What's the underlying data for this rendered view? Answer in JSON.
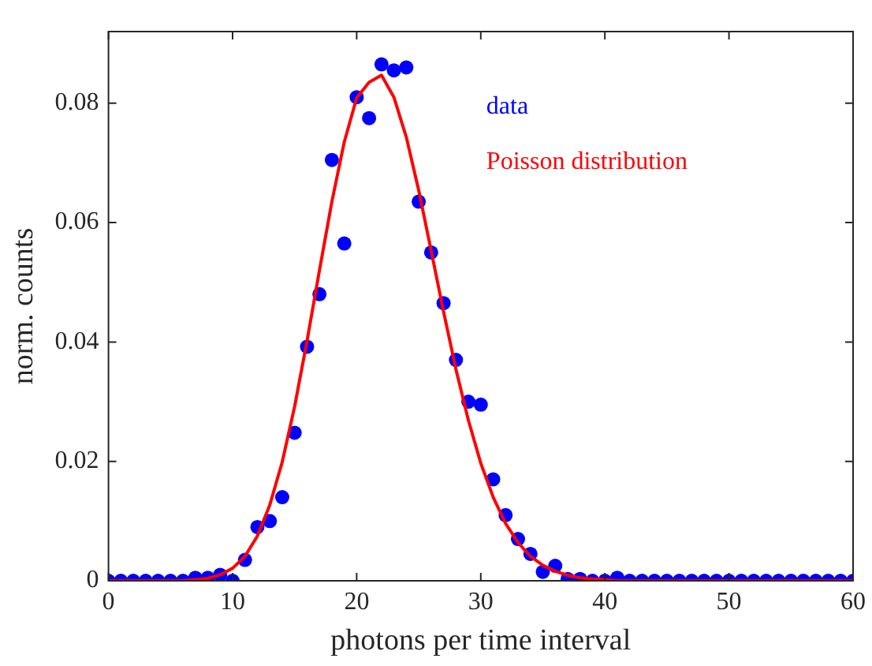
{
  "chart_data": {
    "type": "scatter",
    "xlabel": "photons per time interval",
    "ylabel": "norm. counts",
    "x": [
      0,
      1,
      2,
      3,
      4,
      5,
      6,
      7,
      8,
      9,
      10,
      11,
      12,
      13,
      14,
      15,
      16,
      17,
      18,
      19,
      20,
      21,
      22,
      23,
      24,
      25,
      26,
      27,
      28,
      29,
      30,
      31,
      32,
      33,
      34,
      35,
      36,
      37,
      38,
      39,
      40,
      41,
      42,
      43,
      44,
      45,
      46,
      47,
      48,
      49,
      50,
      51,
      52,
      53,
      54,
      55,
      56,
      57,
      58,
      59,
      60
    ],
    "series": [
      {
        "name": "data",
        "type": "scatter",
        "marker": "circle",
        "color": "#0000ff",
        "values": [
          0,
          0,
          0,
          0,
          0,
          0,
          0,
          0.0005,
          0.0005,
          0.001,
          0,
          0.0035,
          0.009,
          0.01,
          0.014,
          0.0248,
          0.0392,
          0.048,
          0.0705,
          0.0565,
          0.081,
          0.0775,
          0.0865,
          0.0855,
          0.086,
          0.0635,
          0.055,
          0.0465,
          0.037,
          0.03,
          0.0295,
          0.017,
          0.011,
          0.007,
          0.0045,
          0.0015,
          0.0025,
          0.0003,
          0.0003,
          0,
          0,
          0.0005,
          0,
          0,
          0,
          0,
          0,
          0,
          0,
          0,
          0,
          0,
          0,
          0,
          0,
          0,
          0,
          0,
          0,
          0,
          0
        ]
      },
      {
        "name": "Poisson distribution",
        "type": "line",
        "marker": "none",
        "line_style": "solid",
        "color": "#ff0000",
        "values": [
          0,
          0,
          0,
          0,
          0,
          0,
          0,
          0.0002,
          0.0004,
          0.001,
          0.0021,
          0.0041,
          0.0075,
          0.0127,
          0.0199,
          0.0292,
          0.0402,
          0.052,
          0.0635,
          0.0735,
          0.0809,
          0.0835,
          0.0847,
          0.081,
          0.0743,
          0.0654,
          0.0553,
          0.0451,
          0.0354,
          0.0269,
          0.0197,
          0.014,
          0.0096,
          0.0064,
          0.0041,
          0.0026,
          0.0016,
          0.0009,
          0.0005,
          0.0003,
          0.0002,
          0,
          0,
          0,
          0,
          0,
          0,
          0,
          0,
          0,
          0,
          0,
          0,
          0,
          0,
          0,
          0,
          0,
          0,
          0,
          0
        ]
      }
    ],
    "xlim": [
      0,
      60
    ],
    "xticks": [
      0,
      10,
      20,
      30,
      40,
      50,
      60
    ],
    "ylim": [
      0,
      0.092
    ],
    "yticks": [
      0,
      0.02,
      0.04,
      0.06,
      0.08
    ],
    "legend": "top right"
  }
}
